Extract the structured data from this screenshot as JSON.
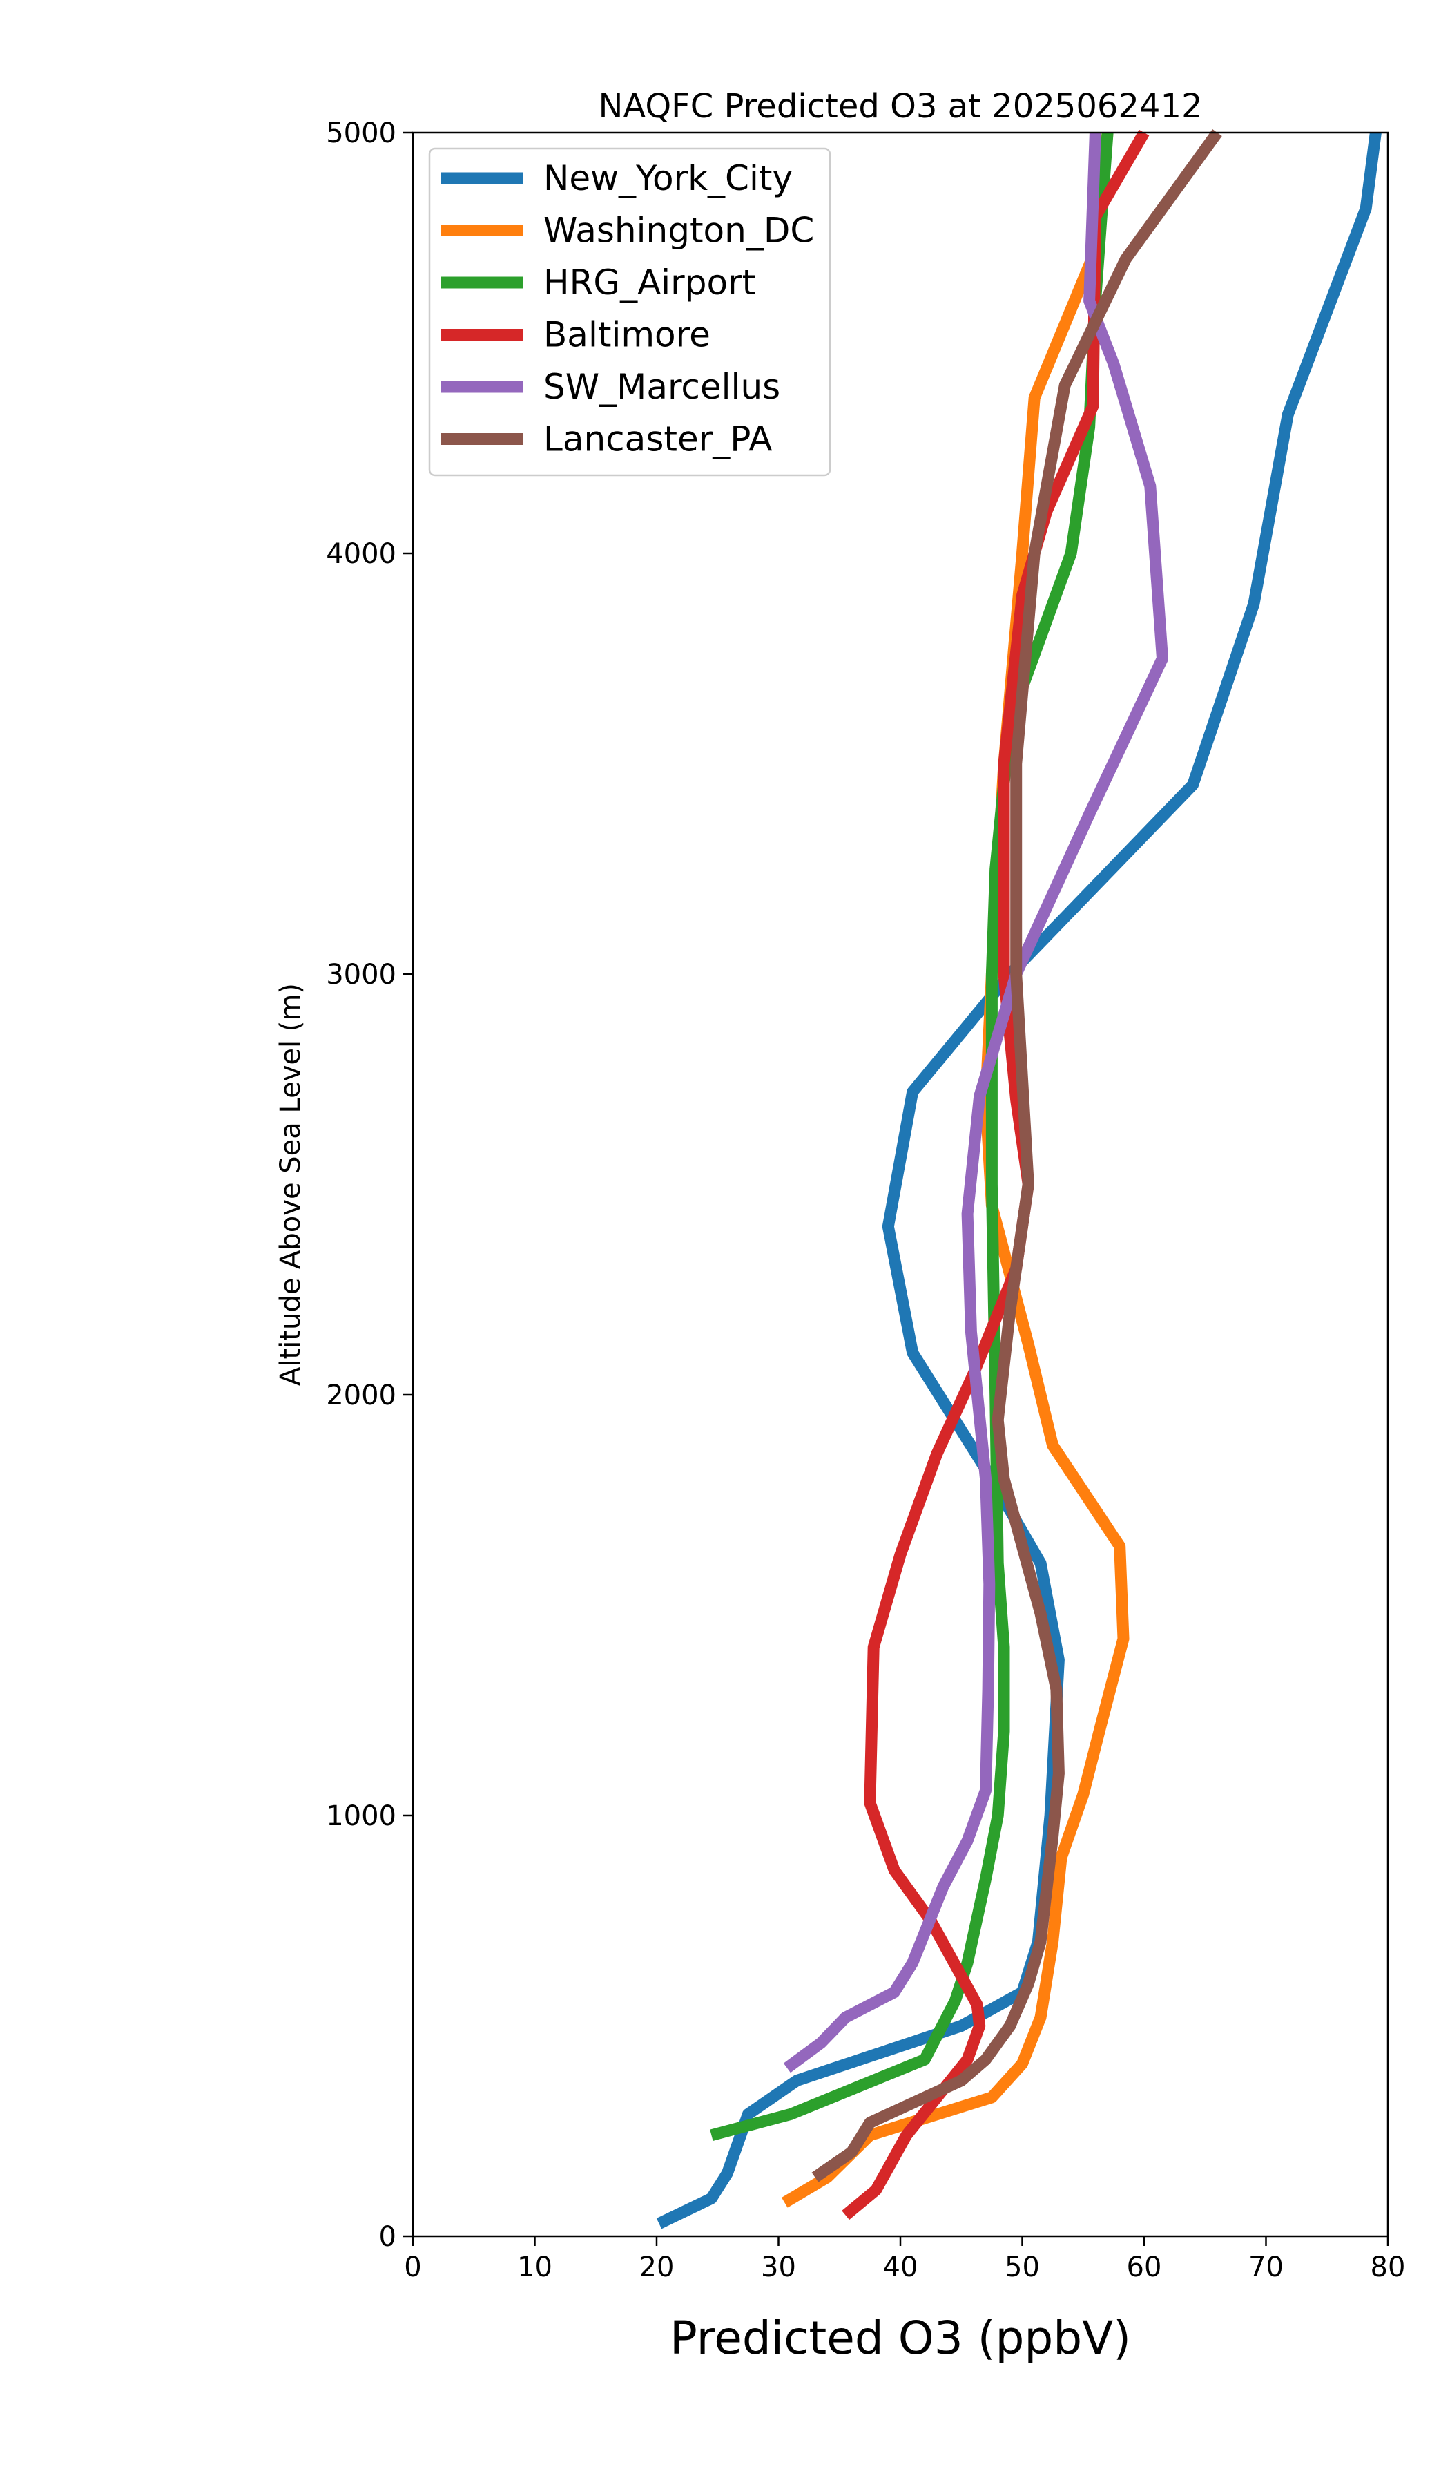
{
  "chart_data": {
    "type": "line",
    "title": "NAQFC Predicted O3 at 2025062412",
    "xlabel": "Predicted O3 (ppbV)",
    "ylabel": "Altitude Above Sea Level (m)",
    "xlim": [
      0,
      80
    ],
    "ylim": [
      0,
      5000
    ],
    "xticks": [
      0,
      10,
      20,
      30,
      40,
      50,
      60,
      70,
      80
    ],
    "yticks": [
      0,
      1000,
      2000,
      3000,
      4000,
      5000
    ],
    "grid": false,
    "legend_position": "top-left",
    "series": [
      {
        "name": "New_York_City",
        "color": "#1f77b4",
        "points": [
          [
            20.2,
            30
          ],
          [
            24.5,
            90
          ],
          [
            25.8,
            150
          ],
          [
            27.5,
            290
          ],
          [
            31.5,
            370
          ],
          [
            45,
            500
          ],
          [
            50,
            580
          ],
          [
            51.3,
            700
          ],
          [
            52.3,
            1000
          ],
          [
            53,
            1370
          ],
          [
            51.5,
            1600
          ],
          [
            47.5,
            1800
          ],
          [
            41,
            2100
          ],
          [
            39,
            2400
          ],
          [
            41,
            2720
          ],
          [
            49,
            3000
          ],
          [
            64,
            3450
          ],
          [
            69,
            3880
          ],
          [
            71.8,
            4330
          ],
          [
            78.2,
            4820
          ],
          [
            79,
            5000
          ]
        ]
      },
      {
        "name": "Washington_DC",
        "color": "#ff7f0e",
        "points": [
          [
            30.5,
            80
          ],
          [
            34,
            140
          ],
          [
            37.5,
            240
          ],
          [
            47.5,
            330
          ],
          [
            50,
            410
          ],
          [
            51.5,
            520
          ],
          [
            52.5,
            700
          ],
          [
            53.2,
            900
          ],
          [
            55,
            1050
          ],
          [
            56.5,
            1220
          ],
          [
            58.3,
            1420
          ],
          [
            58,
            1640
          ],
          [
            52.5,
            1880
          ],
          [
            50.5,
            2120
          ],
          [
            47.5,
            2450
          ],
          [
            47,
            2700
          ],
          [
            47.5,
            3000
          ],
          [
            48.5,
            3500
          ],
          [
            50,
            4000
          ],
          [
            51,
            4370
          ],
          [
            56,
            4720
          ],
          [
            57,
            5000
          ]
        ]
      },
      {
        "name": "HRG_Airport",
        "color": "#2ca02c",
        "points": [
          [
            24.5,
            240
          ],
          [
            31,
            290
          ],
          [
            42,
            420
          ],
          [
            44.5,
            560
          ],
          [
            45.5,
            650
          ],
          [
            47,
            850
          ],
          [
            48,
            1000
          ],
          [
            48.5,
            1200
          ],
          [
            48.5,
            1400
          ],
          [
            48,
            1600
          ],
          [
            47.8,
            2000
          ],
          [
            47.5,
            2500
          ],
          [
            47.5,
            3000
          ],
          [
            47.8,
            3250
          ],
          [
            49,
            3600
          ],
          [
            54,
            4000
          ],
          [
            55.5,
            4300
          ],
          [
            56,
            4600
          ],
          [
            56.5,
            4800
          ],
          [
            57,
            5000
          ]
        ]
      },
      {
        "name": "Baltimore",
        "color": "#d62728",
        "points": [
          [
            35.5,
            50
          ],
          [
            38,
            110
          ],
          [
            40.5,
            240
          ],
          [
            45.5,
            420
          ],
          [
            46.5,
            500
          ],
          [
            46.3,
            550
          ],
          [
            42.5,
            750
          ],
          [
            39.5,
            870
          ],
          [
            37.5,
            1030
          ],
          [
            37.8,
            1400
          ],
          [
            40,
            1620
          ],
          [
            43,
            1860
          ],
          [
            46,
            2050
          ],
          [
            49.5,
            2300
          ],
          [
            50.5,
            2500
          ],
          [
            49.5,
            2700
          ],
          [
            48.5,
            3000
          ],
          [
            48.5,
            3500
          ],
          [
            50,
            3900
          ],
          [
            52,
            4100
          ],
          [
            55.8,
            4350
          ],
          [
            56,
            4800
          ],
          [
            60,
            5000
          ]
        ]
      },
      {
        "name": "SW_Marcellus",
        "color": "#9467bd",
        "points": [
          [
            30.7,
            400
          ],
          [
            33.5,
            460
          ],
          [
            35.5,
            520
          ],
          [
            39.5,
            580
          ],
          [
            41,
            650
          ],
          [
            43.5,
            830
          ],
          [
            45.5,
            940
          ],
          [
            47,
            1060
          ],
          [
            47.2,
            1300
          ],
          [
            47.3,
            1550
          ],
          [
            47,
            1800
          ],
          [
            45.8,
            2150
          ],
          [
            45.5,
            2430
          ],
          [
            46.5,
            2710
          ],
          [
            49.5,
            3000
          ],
          [
            55.5,
            3380
          ],
          [
            61.5,
            3750
          ],
          [
            60.5,
            4160
          ],
          [
            57.5,
            4450
          ],
          [
            55.5,
            4600
          ],
          [
            56,
            5000
          ]
        ]
      },
      {
        "name": "Lancaster_PA",
        "color": "#8c564b",
        "points": [
          [
            33,
            140
          ],
          [
            36,
            200
          ],
          [
            37.5,
            270
          ],
          [
            45,
            370
          ],
          [
            47,
            420
          ],
          [
            49,
            500
          ],
          [
            50.5,
            600
          ],
          [
            51.5,
            700
          ],
          [
            52.5,
            950
          ],
          [
            53,
            1100
          ],
          [
            52.8,
            1300
          ],
          [
            51.5,
            1480
          ],
          [
            50,
            1640
          ],
          [
            48.5,
            1800
          ],
          [
            48,
            1940
          ],
          [
            49,
            2200
          ],
          [
            50.5,
            2500
          ],
          [
            49.5,
            3000
          ],
          [
            49.5,
            3500
          ],
          [
            51,
            4000
          ],
          [
            53.5,
            4400
          ],
          [
            58.5,
            4700
          ],
          [
            66,
            5000
          ]
        ]
      }
    ]
  }
}
